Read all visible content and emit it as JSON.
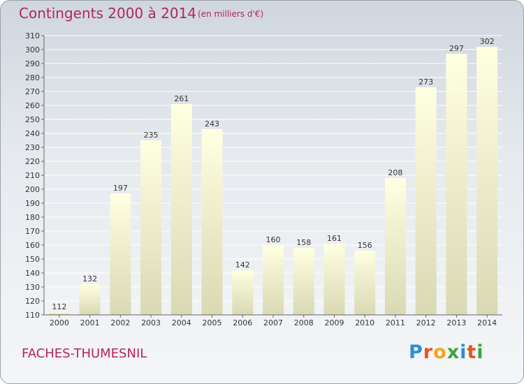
{
  "header": {
    "title": "Contingents 2000 à 2014",
    "subtitle": "(en milliers d'€)"
  },
  "footer": {
    "commune": "FACHES-THUMESNIL",
    "brand": "Proxiti",
    "brand_colors": [
      "#2a8fd6",
      "#e8531e",
      "#f2a51d",
      "#3aa63a",
      "#2a8fd6",
      "#e8531e",
      "#3aa63a"
    ]
  },
  "colors": {
    "title": "#b3245e",
    "bar_top": "#ffffe2",
    "bar_bottom": "#d9d9b3",
    "grid": "#ffffff",
    "axis_text": "#333333"
  },
  "chart_data": {
    "type": "bar",
    "categories": [
      "2000",
      "2001",
      "2002",
      "2003",
      "2004",
      "2005",
      "2006",
      "2007",
      "2008",
      "2009",
      "2010",
      "2011",
      "2012",
      "2013",
      "2014"
    ],
    "values": [
      112,
      132,
      197,
      235,
      261,
      243,
      142,
      160,
      158,
      161,
      156,
      208,
      273,
      297,
      302
    ],
    "title": "Contingents 2000 à 2014",
    "ylim": [
      110,
      310
    ],
    "yticks": [
      110,
      120,
      130,
      140,
      150,
      160,
      170,
      180,
      190,
      200,
      210,
      220,
      230,
      240,
      250,
      260,
      270,
      280,
      290,
      300,
      310
    ],
    "grid": true,
    "data_labels": true
  }
}
